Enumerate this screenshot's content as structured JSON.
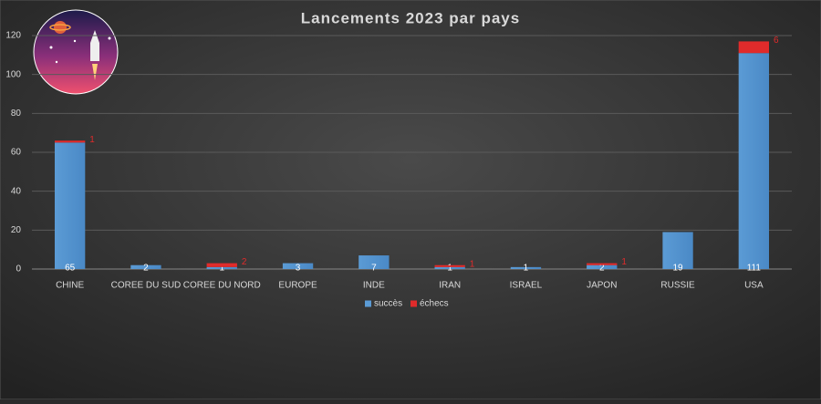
{
  "chart_data": {
    "type": "stacked-bar",
    "title": "Lancements 2023 par pays",
    "categories": [
      "CHINE",
      "COREE DU SUD",
      "COREE DU NORD",
      "EUROPE",
      "INDE",
      "IRAN",
      "ISRAEL",
      "JAPON",
      "RUSSIE",
      "USA"
    ],
    "series": [
      {
        "name": "succès",
        "color": "#5b9bd5",
        "values": [
          65,
          2,
          1,
          3,
          7,
          1,
          1,
          2,
          19,
          111
        ]
      },
      {
        "name": "échecs",
        "color": "#e02b2b",
        "values": [
          1,
          null,
          2,
          null,
          null,
          1,
          null,
          1,
          null,
          6
        ]
      }
    ],
    "ylim": [
      0,
      120
    ],
    "yticks": [
      0,
      20,
      40,
      60,
      80,
      100,
      120
    ],
    "grid": true,
    "legend": "bottom"
  }
}
